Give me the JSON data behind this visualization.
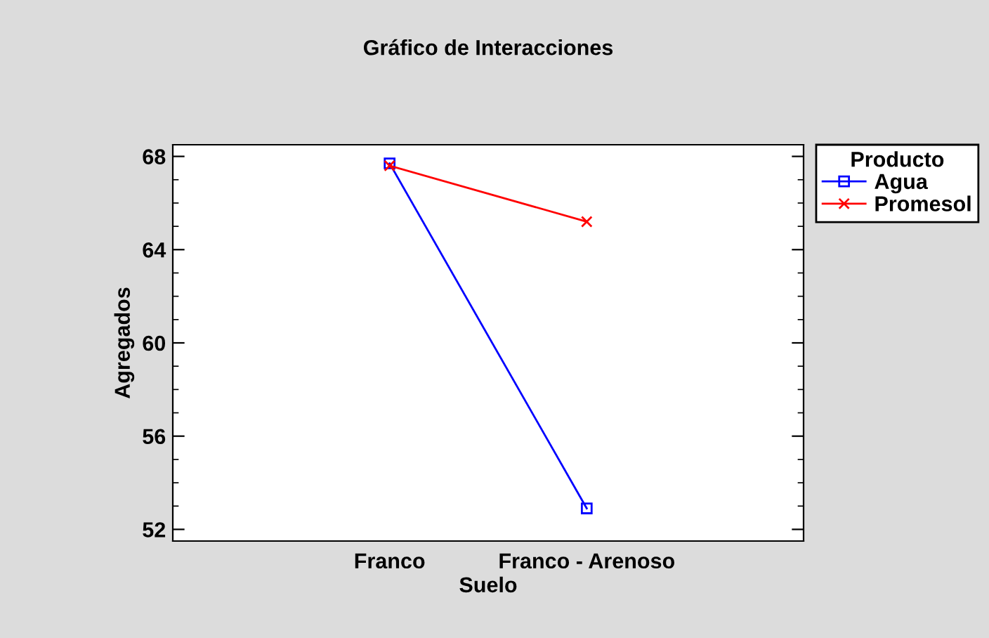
{
  "chart_data": {
    "type": "line",
    "title": "Gráfico de Interacciones",
    "xlabel": "Suelo",
    "ylabel": "Agregados",
    "categories": [
      "Franco",
      "Franco - Arenoso"
    ],
    "legend_title": "Producto",
    "legend": "top right",
    "series": [
      {
        "name": "Agua",
        "color": "#0000ff",
        "values": [
          67.7,
          52.9
        ],
        "marker": "square"
      },
      {
        "name": "Promesol",
        "color": "#ff0000",
        "values": [
          67.6,
          65.2
        ],
        "marker": "cross"
      }
    ],
    "ylim": [
      51.5,
      68.5
    ],
    "yticks": [
      52,
      56,
      60,
      64,
      68
    ],
    "grid": false,
    "line_style": "solid"
  }
}
